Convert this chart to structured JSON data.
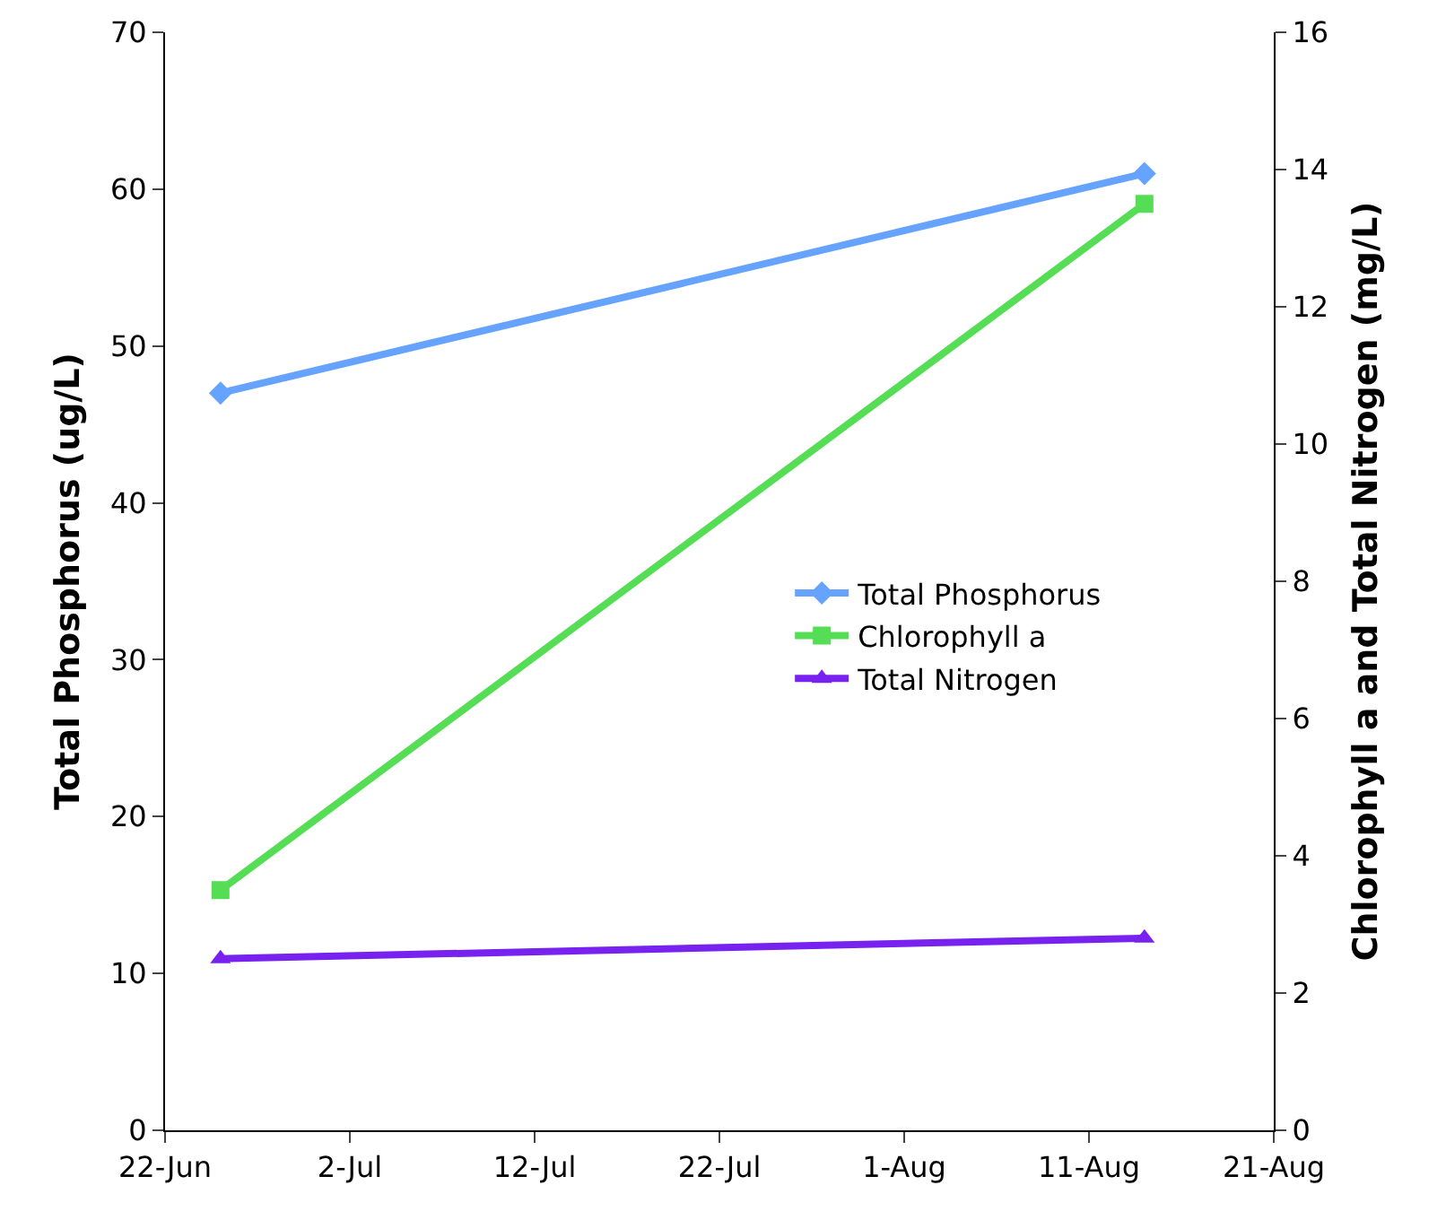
{
  "chart_data": {
    "type": "line",
    "ylabel": "Total Phosphorus (ug/L)",
    "y2label": "Chlorophyll a and Total Nitrogen (mg/L)",
    "x": [
      "--06-25",
      "--08-14"
    ],
    "series": [
      {
        "name": "Total Phosphorus",
        "color": "#66a3ff",
        "values": [
          47,
          61
        ],
        "marker": "diamond"
      },
      {
        "name": "Chlorophyll a",
        "color": "#55dd55",
        "values": [
          3.5,
          13.5
        ],
        "axis": "y2",
        "marker": "square"
      },
      {
        "name": "Total Nitrogen",
        "color": "#7722ee",
        "values": [
          2.5,
          2.8
        ],
        "axis": "y2",
        "marker": "triangle"
      }
    ],
    "xlim": [
      "--06-22",
      "--08-21"
    ],
    "xticks": [
      {
        "value": "--06-22",
        "label": "22-Jun"
      },
      {
        "value": "--07-02",
        "label": "2-Jul"
      },
      {
        "value": "--07-12",
        "label": "12-Jul"
      },
      {
        "value": "--07-22",
        "label": "22-Jul"
      },
      {
        "value": "--08-01",
        "label": "1-Aug"
      },
      {
        "value": "--08-11",
        "label": "11-Aug"
      },
      {
        "value": "--08-21",
        "label": "21-Aug"
      }
    ],
    "ylim": [
      0,
      70
    ],
    "yticks": [
      0,
      10,
      20,
      30,
      40,
      50,
      60,
      70
    ],
    "y2lim": [
      0,
      16
    ],
    "y2ticks": [
      0,
      2,
      4,
      6,
      8,
      10,
      12,
      14,
      16
    ],
    "grid": false,
    "legend": "right",
    "line_style": "solid"
  }
}
